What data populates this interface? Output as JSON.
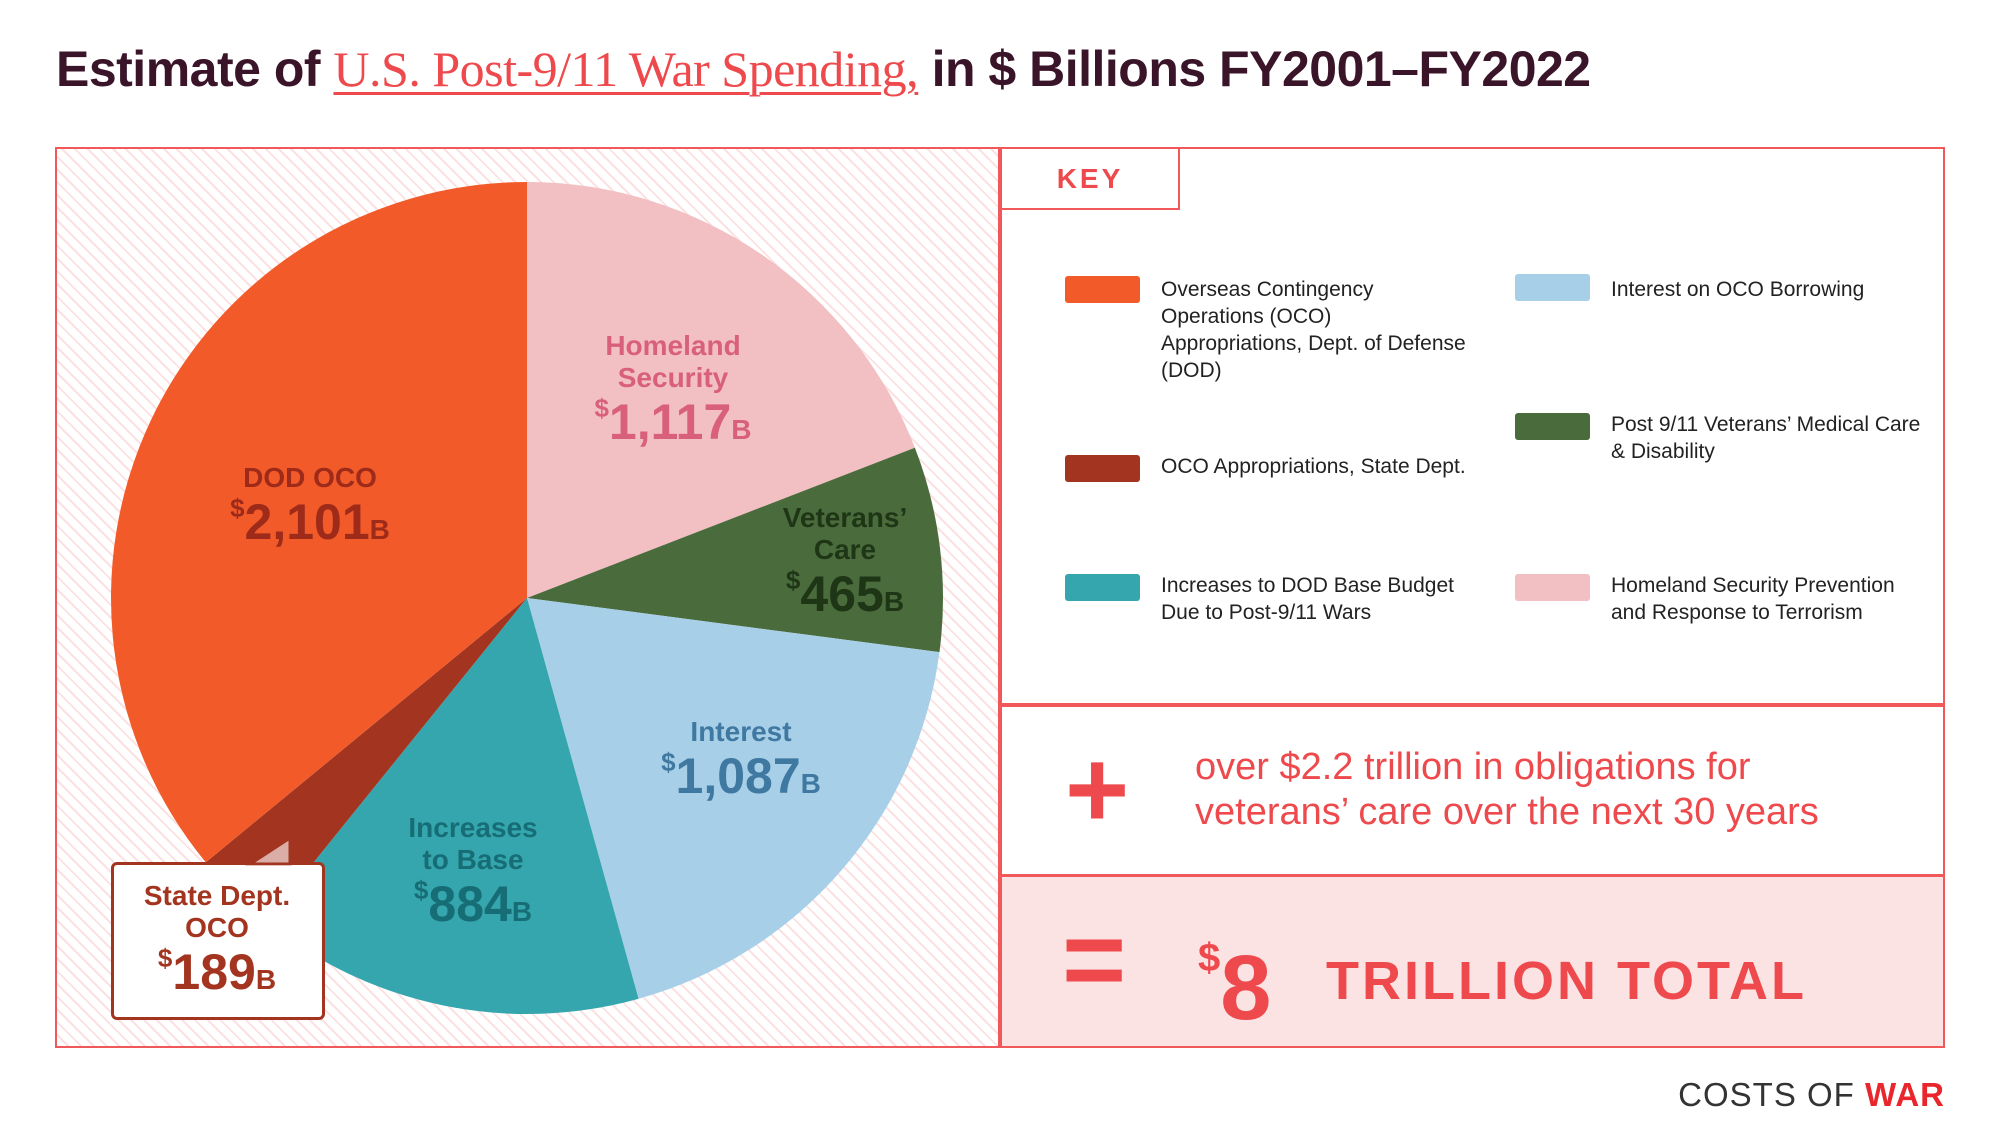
{
  "title": {
    "pre": "Estimate of ",
    "highlight": "U.S. Post-9/11 War Spending,",
    "post": " in $ Billions FY2001–FY2022"
  },
  "chart_data": {
    "type": "pie",
    "title": "Estimate of U.S. Post-9/11 War Spending, in $ Billions FY2001–FY2022",
    "unit": "$ Billions",
    "start": "12 o'clock, clockwise",
    "slices": [
      {
        "key": "homeland",
        "name": "Homeland Security",
        "value": 1117,
        "value_label": "1,117",
        "color": "#f2bfc2",
        "label_color": "#d9607a"
      },
      {
        "key": "veterans",
        "name": "Veterans’ Care",
        "value": 465,
        "value_label": "465",
        "color": "#4a6b3c",
        "label_color": "#1e3516"
      },
      {
        "key": "interest",
        "name": "Interest",
        "value": 1087,
        "value_label": "1,087",
        "color": "#a8cfe8",
        "label_color": "#3f78a0"
      },
      {
        "key": "base",
        "name": "Increases to Base",
        "value": 884,
        "value_label": "884",
        "color": "#35a6ad",
        "label_color": "#176d75"
      },
      {
        "key": "state",
        "name": "State Dept. OCO",
        "value": 189,
        "value_label": "189",
        "color": "#a33520",
        "label_color": "#a33520"
      },
      {
        "key": "dod",
        "name": "DOD OCO",
        "value": 2101,
        "value_label": "2,101",
        "color": "#f25a2a",
        "label_color": "#9e2a1a"
      }
    ],
    "labels": {
      "homeland": [
        "Homeland",
        "Security"
      ],
      "veterans": [
        "Veterans’",
        "Care"
      ],
      "interest": [
        "Interest"
      ],
      "base": [
        "Increases",
        "to Base"
      ],
      "state": [
        "State Dept.",
        "OCO"
      ],
      "dod": [
        "DOD OCO"
      ]
    },
    "currency": "$",
    "suffix": "B"
  },
  "key": {
    "title": "KEY",
    "items": [
      {
        "label": "Overseas Contingency Operations (OCO) Appropriations, Dept. of Defense (DOD)",
        "color": "#f25a2a"
      },
      {
        "label": "OCO Appropriations, State Dept.",
        "color": "#a33520"
      },
      {
        "label": "Increases to DOD Base Budget Due to Post-9/11 Wars",
        "color": "#35a6ad"
      },
      {
        "label": "Interest on OCO Borrowing",
        "color": "#a8cfe8"
      },
      {
        "label": "Post 9/11 Veterans’ Medical Care & Disability",
        "color": "#4a6b3c"
      },
      {
        "label": "Homeland Security Prevention and Response to Terrorism",
        "color": "#f2bfc2"
      }
    ]
  },
  "plus": {
    "symbol": "+",
    "line1": "over $2.2 trillion in obligations for",
    "line2": "veterans’ care over the next 30 years"
  },
  "total": {
    "symbol": "=",
    "currency": "$",
    "amount": "8",
    "label": "TRILLION TOTAL"
  },
  "brand": {
    "part1": "COSTS OF ",
    "part2": "WAR"
  },
  "colors": {
    "accent": "#ee4a4d",
    "title": "#3a1428",
    "frame": "#f0585a"
  }
}
